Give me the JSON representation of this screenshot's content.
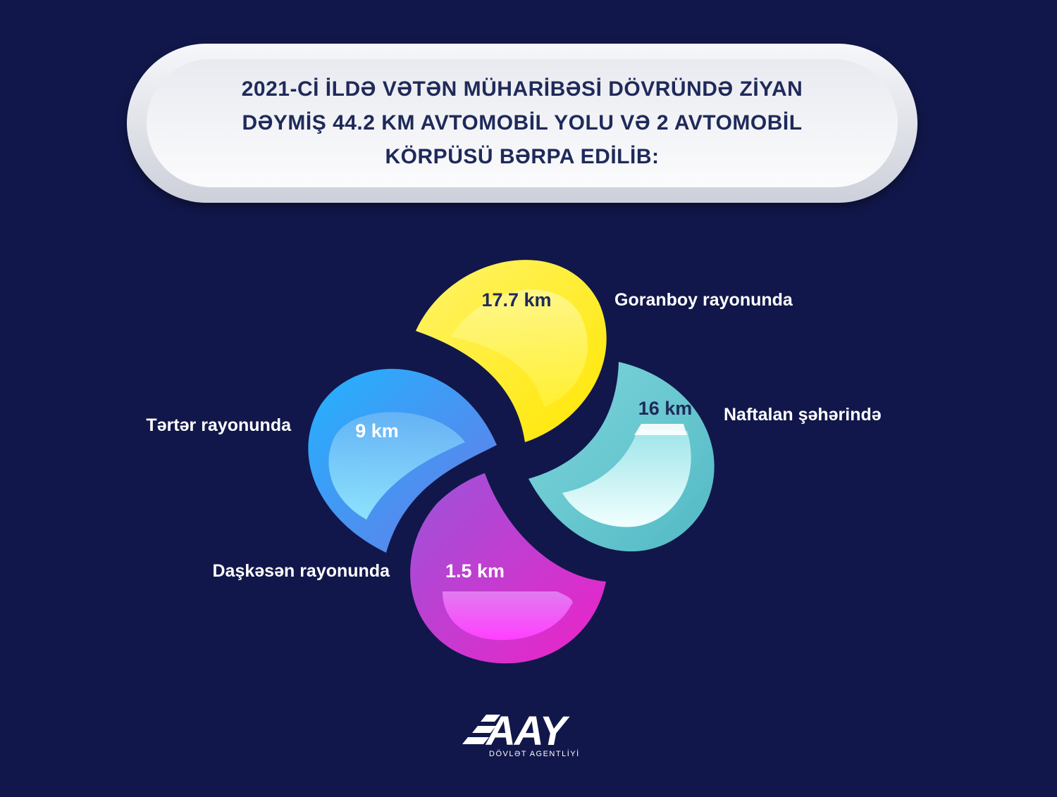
{
  "title": "2021-Cİ İLDƏ VƏTƏN MÜHARİBƏSİ DÖVRÜNDƏ ZİYAN\nDƏYMİŞ 44.2 KM AVTOMOBİL YOLU VƏ 2 AVTOMOBİL\nKÖRPÜSÜ BƏRPA EDİLİB:",
  "chart_data": {
    "type": "pie",
    "unit": "km",
    "items": [
      {
        "value_label": "17.7 km",
        "label": "Goranboy rayonunda",
        "value": 17.7,
        "color": "#fff200"
      },
      {
        "value_label": "16 km",
        "label": "Naftalan şəhərində",
        "value": 16,
        "color": "#5cc6cf"
      },
      {
        "value_label": "9 km",
        "label": "Tərtər rayonunda",
        "value": 9,
        "color": "#3b9cf0"
      },
      {
        "value_label": "1.5 km",
        "label": "Daşkəsən rayonunda",
        "value": 1.5,
        "color": "#c43fd0"
      }
    ]
  },
  "logo": {
    "brand": "AAY",
    "subtitle": "DÖVLƏT AGENTLİYİ"
  }
}
